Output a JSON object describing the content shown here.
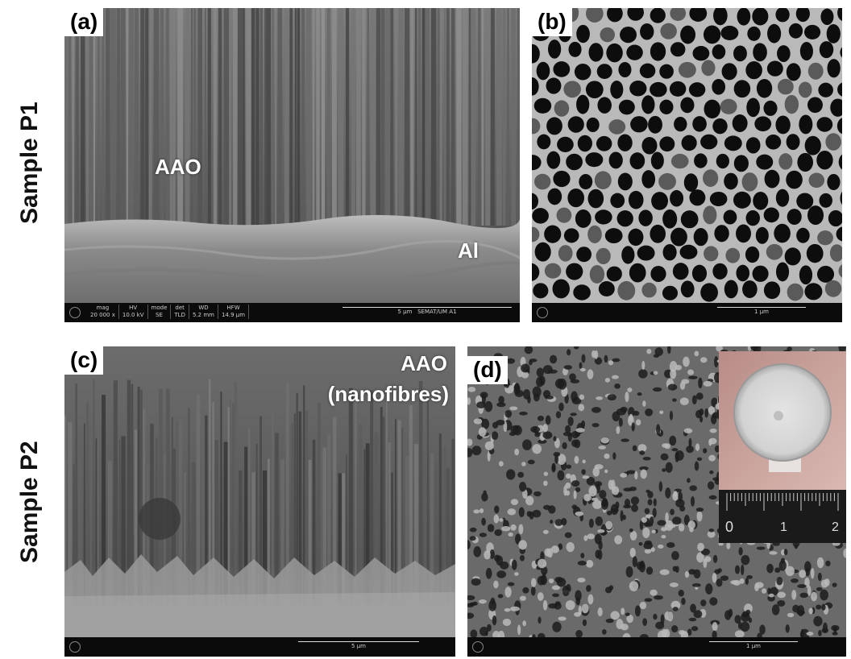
{
  "rows": [
    {
      "label": "Sample P1"
    },
    {
      "label": "Sample P2"
    }
  ],
  "panels": {
    "a": {
      "tag": "(a)",
      "labels": {
        "aao": "AAO",
        "al": "Al"
      },
      "databar": {
        "fields": [
          {
            "name": "mag",
            "value": "20 000 x"
          },
          {
            "name": "HV",
            "value": "10.0 kV"
          },
          {
            "name": "mode",
            "value": "SE"
          },
          {
            "name": "det",
            "value": "TLD"
          },
          {
            "name": "WD",
            "value": "5.2 mm"
          },
          {
            "name": "HFW",
            "value": "14.9 µm"
          }
        ],
        "scale": "5 µm",
        "facility": "SEMAT/UM A1"
      }
    },
    "b": {
      "tag": "(b)",
      "databar": {
        "scale": "1 µm"
      }
    },
    "c": {
      "tag": "(c)",
      "labels": {
        "aao": "AAO",
        "nanofibres": "(nanofibres)"
      },
      "databar": {
        "scale": "5 µm"
      }
    },
    "d": {
      "tag": "(d)",
      "databar": {
        "scale": "1 µm"
      },
      "inset": {
        "ruler_marks": [
          "0",
          "1",
          "2"
        ]
      }
    }
  },
  "colors": {
    "label_text": "#ffffff",
    "tag_bg": "#ffffff",
    "databar_bg": "#0b0b0b"
  }
}
